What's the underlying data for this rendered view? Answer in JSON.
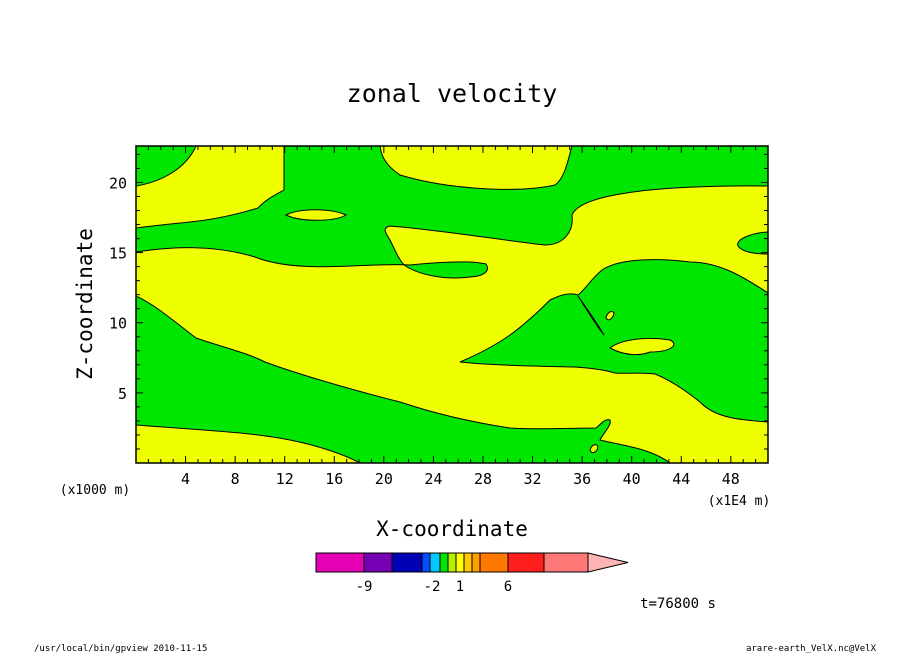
{
  "chart_data": {
    "type": "heatmap",
    "title": "zonal velocity",
    "xlabel": "X-coordinate",
    "ylabel": "Z-coordinate",
    "x_unit_left": "(x1000 m)",
    "x_unit_right": "(x1E4 m)",
    "x_ticks": [
      "4",
      "8",
      "12",
      "16",
      "20",
      "24",
      "28",
      "32",
      "36",
      "40",
      "44",
      "48"
    ],
    "y_ticks": [
      "5",
      "10",
      "15",
      "20"
    ],
    "x_tick_values": [
      4,
      8,
      12,
      16,
      20,
      24,
      28,
      32,
      36,
      40,
      44,
      48
    ],
    "y_tick_values": [
      5,
      10,
      15,
      20
    ],
    "xlim": [
      0,
      51
    ],
    "ylim": [
      0,
      22.6
    ],
    "fill_colors": {
      "positive": "#f0ff00",
      "negative": "#00e600"
    },
    "colorbar": {
      "colors": [
        "#e600b4",
        "#7800b4",
        "#0000b4",
        "#0050ff",
        "#00c8ff",
        "#00e600",
        "#b4f000",
        "#ffff00",
        "#ffc800",
        "#ffa000",
        "#ff7800",
        "#ff1e1e",
        "#ff7878",
        "#ffb4b4"
      ],
      "labels": [
        "-9",
        "-2",
        "1",
        "6"
      ],
      "extend": "max"
    },
    "time_label": "t=76800 s"
  },
  "footer": {
    "left": "/usr/local/bin/gpview  2010-11-15",
    "right": "arare-earth_VelX.nc@VelX"
  }
}
